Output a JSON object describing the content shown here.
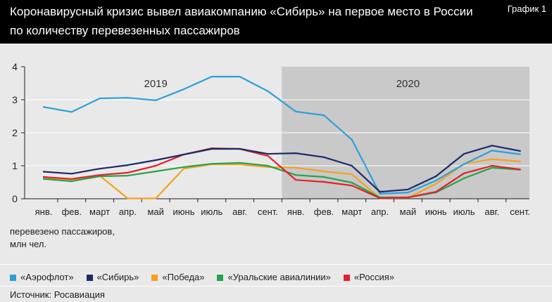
{
  "header": {
    "figure_label": "График 1"
  },
  "source": "Источник: Росавиация",
  "chart_data": {
    "type": "line",
    "title": [
      "Коронавирусный кризис вывел авиакомпанию «Сибирь» на первое место в России",
      "по количеству перевезенных пассажиров"
    ],
    "categories": [
      "янв.",
      "фев.",
      "март",
      "апр.",
      "май",
      "июнь",
      "июль",
      "авг.",
      "сент.",
      "янв.",
      "фев.",
      "март",
      "апр.",
      "май",
      "июнь",
      "июль",
      "авг.",
      "сент."
    ],
    "periods": [
      {
        "label": "2019",
        "from_index": 0,
        "to_index": 8,
        "shaded": false
      },
      {
        "label": "2020",
        "from_index": 9,
        "to_index": 17,
        "shaded": true
      }
    ],
    "ylabel": [
      "перевезено пассажиров,",
      "млн чел."
    ],
    "ylim": [
      0,
      4
    ],
    "yticks": [
      0,
      1,
      2,
      3,
      4
    ],
    "grid": true,
    "legend_position": "bottom",
    "series": [
      {
        "name": "«Аэрофлот»",
        "color": "#2e9fd9",
        "values": [
          2.78,
          2.63,
          3.04,
          3.06,
          2.98,
          3.32,
          3.7,
          3.7,
          3.26,
          2.64,
          2.53,
          1.79,
          0.15,
          0.19,
          0.55,
          1.05,
          1.46,
          1.35
        ]
      },
      {
        "name": "«Сибирь»",
        "color": "#1b2a6b",
        "values": [
          0.82,
          0.76,
          0.91,
          1.02,
          1.17,
          1.34,
          1.51,
          1.51,
          1.36,
          1.38,
          1.26,
          1.0,
          0.21,
          0.28,
          0.68,
          1.36,
          1.61,
          1.45
        ]
      },
      {
        "name": "«Победа»",
        "color": "#f5a11c",
        "values": [
          0.64,
          0.58,
          0.7,
          0.01,
          0.01,
          0.91,
          1.04,
          1.04,
          0.96,
          0.94,
          0.83,
          0.74,
          0.02,
          0.03,
          0.45,
          1.06,
          1.2,
          1.13
        ]
      },
      {
        "name": "«Уральские авиалинии»",
        "color": "#23a44b",
        "values": [
          0.6,
          0.53,
          0.68,
          0.7,
          0.83,
          0.96,
          1.06,
          1.09,
          1.0,
          0.72,
          0.66,
          0.49,
          0.04,
          0.04,
          0.19,
          0.62,
          0.94,
          0.88
        ]
      },
      {
        "name": "«Россия»",
        "color": "#e3202a",
        "values": [
          0.66,
          0.6,
          0.72,
          0.79,
          1.0,
          1.34,
          1.53,
          1.51,
          1.3,
          0.57,
          0.51,
          0.4,
          0.02,
          0.04,
          0.21,
          0.77,
          1.0,
          0.89
        ]
      }
    ]
  }
}
